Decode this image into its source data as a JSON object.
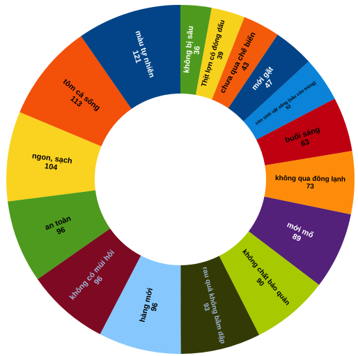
{
  "chart_data": {
    "type": "pie",
    "subtype": "donut",
    "title": "",
    "slices": [
      {
        "label": "không bị sâu",
        "value": 36,
        "color": "#4e9a1e",
        "text_color": "#ffffff"
      },
      {
        "label": "Thịt lợn có đóng dấu",
        "value": 39,
        "color": "#f7d21c",
        "text_color": "#000000"
      },
      {
        "label": "chưa qua chế biến",
        "value": 43,
        "color": "#f35b0a",
        "text_color": "#000000"
      },
      {
        "label": "mới gặt",
        "value": 47,
        "color": "#034488",
        "text_color": "#ffffff"
      },
      {
        "label": "còn sinh vật sống (sâu còn trùng)",
        "value": 52,
        "color": "#0a83d8",
        "text_color": "#000000"
      },
      {
        "label": "buổi sáng",
        "value": 63,
        "color": "#bf0010",
        "text_color": "#000000"
      },
      {
        "label": "không qua đông lạnh",
        "value": 73,
        "color": "#fd8c0a",
        "text_color": "#000000"
      },
      {
        "label": "mới mổ",
        "value": 89,
        "color": "#53207a",
        "text_color": "#ffffff"
      },
      {
        "label": "không chất bảo quản",
        "value": 90,
        "color": "#a7c900",
        "text_color": "#000000"
      },
      {
        "label": "rau quả không bầm dập",
        "value": 93,
        "color": "#333a05",
        "text_color": "#9eb6d8"
      },
      {
        "label": "hàng mới",
        "value": 96,
        "color": "#86c8fd",
        "text_color": "#000000"
      },
      {
        "label": "không có mùi hôi",
        "value": 96,
        "color": "#7d0a22",
        "text_color": "#9eb6d8"
      },
      {
        "label": "an toàn",
        "value": 96,
        "color": "#4e9a1e",
        "text_color": "#000000"
      },
      {
        "label": "ngon, sạch",
        "value": 104,
        "color": "#fad320",
        "text_color": "#000000"
      },
      {
        "label": "tôm cá sống",
        "value": 113,
        "color": "#f3500a",
        "text_color": "#000000"
      },
      {
        "label": "màu tự nhiên",
        "value": 121,
        "color": "#034488",
        "text_color": "#ffffff"
      }
    ]
  }
}
